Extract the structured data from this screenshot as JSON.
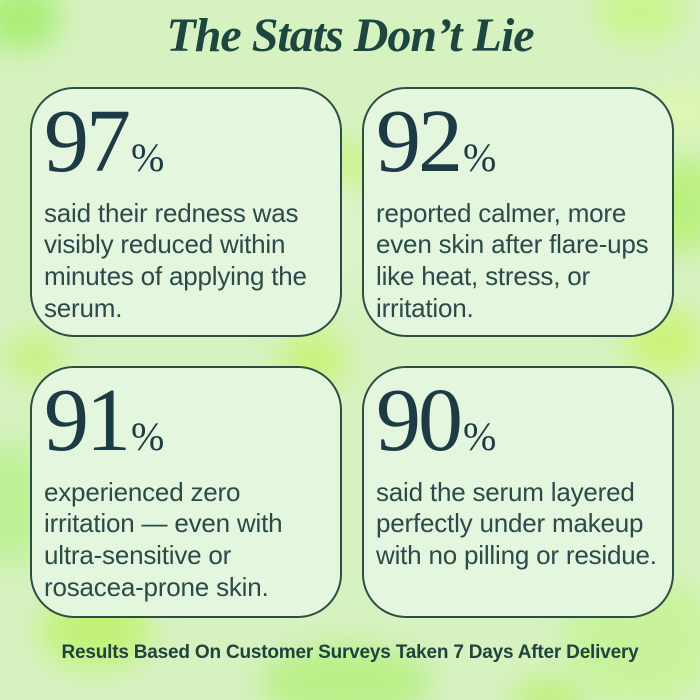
{
  "page": {
    "title": "The Stats Don’t Lie",
    "footer": "Results Based On Customer Surveys Taken 7 Days After Delivery"
  },
  "colors": {
    "background": "#d6f2c0",
    "blob_bright_green": "#a9ee76",
    "blob_yellow_green": "#cbf47a",
    "card_background": "#e4f7de",
    "card_border": "#2d4e44",
    "title_text": "#1c463f",
    "number_text": "#1c3b45",
    "body_text": "#2b4a49",
    "footer_text": "#20433d"
  },
  "stats": [
    {
      "value": "97",
      "unit": "%",
      "description": "said their redness was visibly reduced within minutes of applying the serum."
    },
    {
      "value": "92",
      "unit": "%",
      "description": "reported calmer, more even skin after flare-ups like heat, stress, or irritation."
    },
    {
      "value": "91",
      "unit": "%",
      "description": "experienced zero irritation — even with ultra-sensitive or rosacea-prone skin."
    },
    {
      "value": "90",
      "unit": "%",
      "description": "said the serum layered perfectly under makeup with no pilling or residue."
    }
  ],
  "chart_data": {
    "type": "table",
    "title": "The Stats Don’t Lie",
    "categories": [
      "said their redness was visibly reduced within minutes of applying the serum.",
      "reported calmer, more even skin after flare-ups like heat, stress, or irritation.",
      "experienced zero irritation — even with ultra-sensitive or rosacea-prone skin.",
      "said the serum layered perfectly under makeup with no pilling or residue."
    ],
    "values": [
      97,
      92,
      91,
      90
    ],
    "unit": "%",
    "layout": "2x2 stat cards",
    "footnote": "Results Based On Customer Surveys Taken 7 Days After Delivery"
  }
}
